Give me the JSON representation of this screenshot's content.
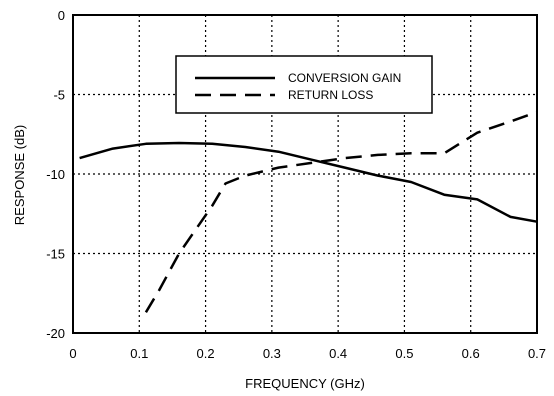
{
  "chart_data": {
    "type": "line",
    "xlabel": "FREQUENCY (GHz)",
    "ylabel": "RESPONSE (dB)",
    "xlim": [
      0,
      0.7
    ],
    "ylim": [
      -20,
      0
    ],
    "x_ticks": [
      0,
      0.1,
      0.2,
      0.3,
      0.4,
      0.5,
      0.6,
      0.7
    ],
    "x_tick_labels": [
      "0",
      "0.1",
      "0.2",
      "0.3",
      "0.4",
      "0.5",
      "0.6",
      "0.7"
    ],
    "y_ticks": [
      0,
      -5,
      -10,
      -15,
      -20
    ],
    "y_tick_labels": [
      "0",
      "-5",
      "-10",
      "-15",
      "-20"
    ],
    "grid": true,
    "legend_position": "top-center",
    "series": [
      {
        "name": "CONVERSION GAIN",
        "style": "solid",
        "color": "#000000",
        "x": [
          0.01,
          0.06,
          0.11,
          0.16,
          0.21,
          0.26,
          0.31,
          0.36,
          0.41,
          0.46,
          0.51,
          0.56,
          0.61,
          0.66,
          0.7
        ],
        "y": [
          -9.0,
          -8.4,
          -8.1,
          -8.05,
          -8.1,
          -8.3,
          -8.6,
          -9.1,
          -9.6,
          -10.1,
          -10.5,
          -11.3,
          -11.6,
          -12.7,
          -13.0
        ]
      },
      {
        "name": "RETURN LOSS",
        "style": "dashed",
        "color": "#000000",
        "x": [
          0.11,
          0.13,
          0.16,
          0.19,
          0.21,
          0.23,
          0.26,
          0.31,
          0.36,
          0.41,
          0.46,
          0.51,
          0.56,
          0.61,
          0.66,
          0.7
        ],
        "y": [
          -18.7,
          -17.3,
          -15.0,
          -13.2,
          -12.0,
          -10.6,
          -10.1,
          -9.6,
          -9.3,
          -9.0,
          -8.8,
          -8.7,
          -8.7,
          -7.4,
          -6.7,
          -6.1
        ]
      }
    ]
  }
}
